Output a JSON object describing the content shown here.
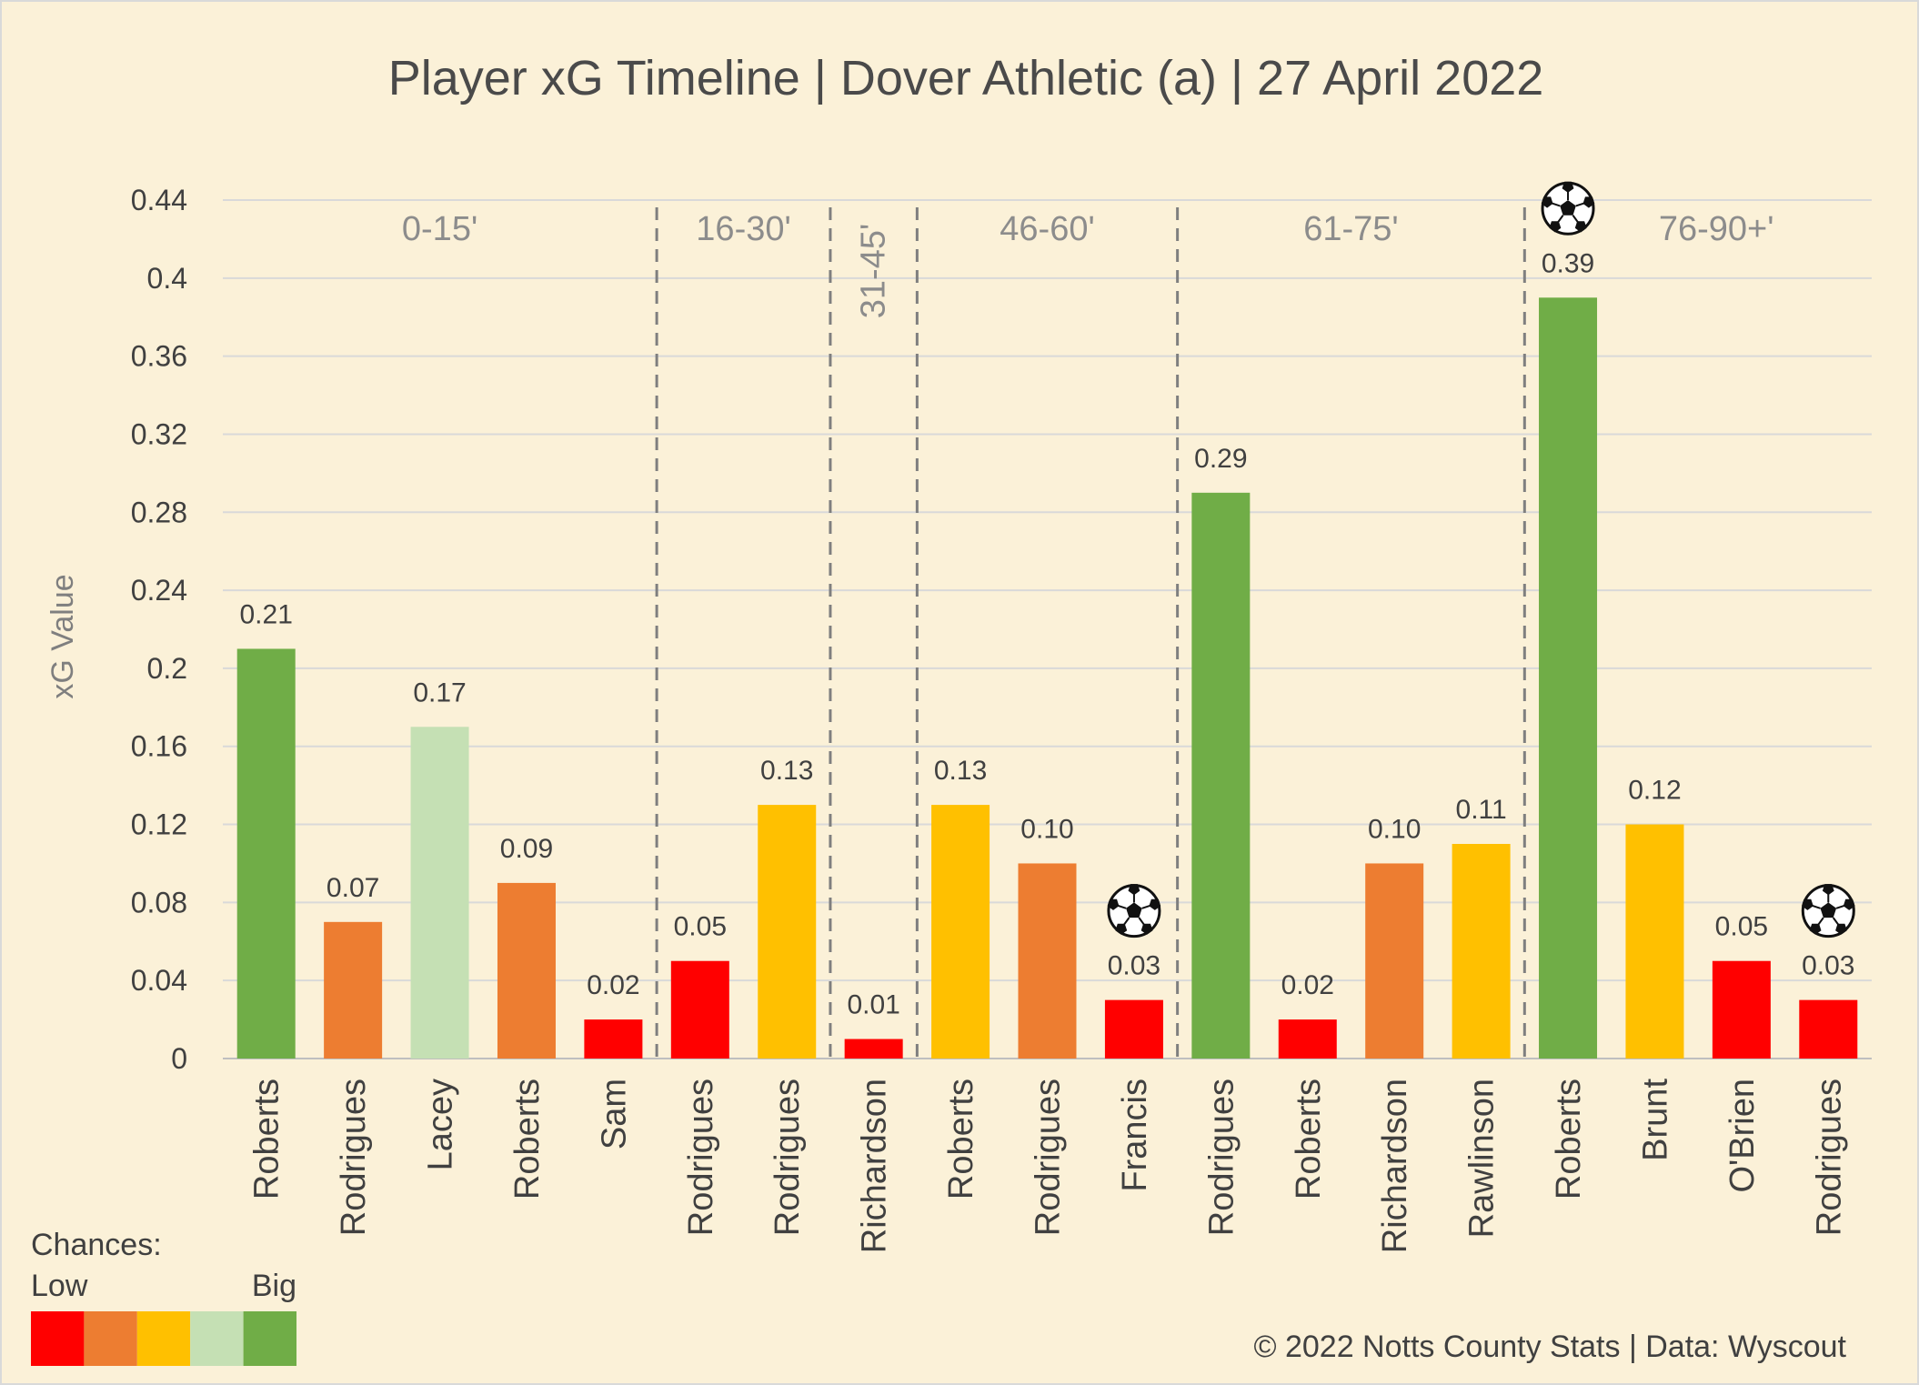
{
  "colors": {
    "background": "#fbf1d8",
    "grid": "#d9d9d9",
    "divider": "#7f7f7f",
    "chance_scale": [
      "#ff0000",
      "#ed7d31",
      "#ffc000",
      "#c5e0b4",
      "#70ad47"
    ]
  },
  "chart_data": {
    "type": "bar",
    "title": "Player xG Timeline | Dover Athletic (a) | 27 April 2022",
    "ylabel": "xG Value",
    "ylim": [
      0,
      0.44
    ],
    "yticks": [
      "0",
      "0.04",
      "0.08",
      "0.12",
      "0.16",
      "0.2",
      "0.24",
      "0.28",
      "0.32",
      "0.36",
      "0.4",
      "0.44"
    ],
    "grid": true,
    "categories": [
      "Roberts",
      "Rodrigues",
      "Lacey",
      "Roberts",
      "Sam",
      "Rodrigues",
      "Rodrigues",
      "Richardson",
      "Roberts",
      "Rodrigues",
      "Francis",
      "Rodrigues",
      "Roberts",
      "Richardson",
      "Rawlinson",
      "Roberts",
      "Brunt",
      "O'Brien",
      "Rodrigues"
    ],
    "values": [
      0.21,
      0.07,
      0.17,
      0.09,
      0.02,
      0.05,
      0.13,
      0.01,
      0.13,
      0.1,
      0.03,
      0.29,
      0.02,
      0.1,
      0.11,
      0.39,
      0.12,
      0.05,
      0.03
    ],
    "value_labels": [
      "0.21",
      "0.07",
      "0.17",
      "0.09",
      "0.02",
      "0.05",
      "0.13",
      "0.01",
      "0.13",
      "0.10",
      "0.03",
      "0.29",
      "0.02",
      "0.10",
      "0.11",
      "0.39",
      "0.12",
      "0.05",
      "0.03"
    ],
    "chance_level": [
      4,
      1,
      3,
      1,
      0,
      0,
      2,
      0,
      2,
      1,
      0,
      4,
      0,
      1,
      2,
      4,
      2,
      0,
      0
    ],
    "goals": [
      false,
      false,
      false,
      false,
      false,
      false,
      false,
      false,
      false,
      false,
      true,
      false,
      false,
      false,
      false,
      true,
      false,
      false,
      true
    ],
    "periods": [
      {
        "label": "0-15'",
        "start": 0,
        "end": 4
      },
      {
        "label": "16-30'",
        "start": 5,
        "end": 6
      },
      {
        "label": "31-45'",
        "start": 7,
        "end": 7,
        "vertical": true
      },
      {
        "label": "46-60'",
        "start": 8,
        "end": 10
      },
      {
        "label": "61-75'",
        "start": 11,
        "end": 14
      },
      {
        "label": "76-90+'",
        "start": 15,
        "end": 18
      }
    ]
  },
  "legend": {
    "title": "Chances:",
    "low_label": "Low",
    "high_label": "Big",
    "goal_icon": "soccer-ball-icon"
  },
  "credit": "© 2022 Notts County Stats | Data: Wyscout"
}
